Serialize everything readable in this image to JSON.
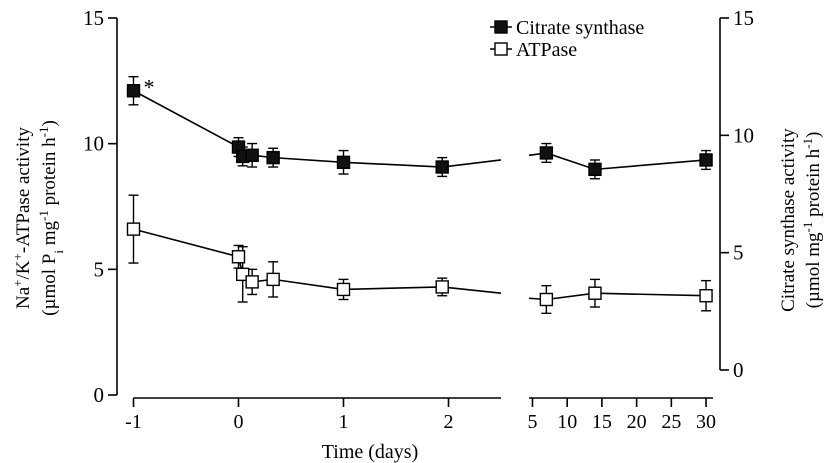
{
  "chart_data": {
    "type": "line",
    "xlabel": "Time (days)",
    "ylabel_left": {
      "line1_parts": [
        "Na",
        "+",
        "/K",
        "+",
        "-ATPase activity"
      ],
      "line2_parts": [
        "(µmol P",
        "i",
        " mg",
        "-1",
        " protein h",
        "-1",
        ")"
      ]
    },
    "ylabel_right": {
      "line1": "Citrate synthase activity",
      "line2_parts": [
        "(µmol mg",
        "-1",
        " protein h",
        "-1",
        ")"
      ]
    },
    "left_axis": {
      "ylim": [
        0,
        15
      ],
      "ticks": [
        0,
        5,
        10,
        15
      ],
      "tick_labels": [
        "0",
        "5",
        "10",
        "15"
      ]
    },
    "right_axis": {
      "ylim": [
        0,
        15
      ],
      "ticks": [
        0,
        5,
        10,
        15
      ],
      "tick_labels": [
        "0",
        "5",
        "10",
        "15"
      ]
    },
    "x_axis_segment1": {
      "xlim": [
        -1,
        2.5
      ],
      "ticks": [
        -1,
        0,
        1,
        2
      ],
      "tick_labels": [
        "-1",
        "0",
        "1",
        "2"
      ]
    },
    "x_axis_segment2": {
      "xlim": [
        4.5,
        31
      ],
      "ticks": [
        5,
        10,
        15,
        20,
        25,
        30
      ],
      "tick_labels": [
        "5",
        "10",
        "15",
        "20",
        "25",
        "30"
      ]
    },
    "legend": {
      "position": "top-right"
    },
    "series": [
      {
        "name": "Citrate synthase",
        "marker": "filled-square",
        "color": "#000000",
        "axis": "right",
        "points": [
          {
            "x": -1,
            "y": 11.9,
            "err": 0.6
          },
          {
            "x": 0,
            "y": 9.5,
            "err": 0.4
          },
          {
            "x": 0.04,
            "y": 9.1,
            "err": 0.4
          },
          {
            "x": 0.13,
            "y": 9.15,
            "err": 0.5
          },
          {
            "x": 0.33,
            "y": 9.05,
            "err": 0.4
          },
          {
            "x": 1,
            "y": 8.85,
            "err": 0.5
          },
          {
            "x": 1.94,
            "y": 8.65,
            "err": 0.4
          },
          {
            "x": 7,
            "y": 9.25,
            "err": 0.4
          },
          {
            "x": 14,
            "y": 8.55,
            "err": 0.4
          },
          {
            "x": 30,
            "y": 8.95,
            "err": 0.4
          }
        ],
        "continuation": {
          "segment1_end_y": 8.95,
          "segment2_start_y": 9.15
        }
      },
      {
        "name": "ATPase",
        "marker": "open-square",
        "color": "#000000",
        "axis": "left",
        "points": [
          {
            "x": -1,
            "y": 6.6,
            "err": 1.35
          },
          {
            "x": 0,
            "y": 5.5,
            "err": 0.45
          },
          {
            "x": 0.04,
            "y": 4.8,
            "err": 1.1
          },
          {
            "x": 0.13,
            "y": 4.5,
            "err": 0.5
          },
          {
            "x": 0.33,
            "y": 4.6,
            "err": 0.7
          },
          {
            "x": 1,
            "y": 4.2,
            "err": 0.4
          },
          {
            "x": 1.94,
            "y": 4.3,
            "err": 0.35
          },
          {
            "x": 7,
            "y": 3.8,
            "err": 0.55
          },
          {
            "x": 14,
            "y": 4.05,
            "err": 0.55
          },
          {
            "x": 30,
            "y": 3.95,
            "err": 0.6
          }
        ],
        "continuation": {
          "segment1_end_y": 4.05,
          "segment2_start_y": 3.85
        }
      }
    ],
    "annotations": [
      {
        "text": "*",
        "series": "Citrate synthase",
        "x": -1
      }
    ]
  }
}
